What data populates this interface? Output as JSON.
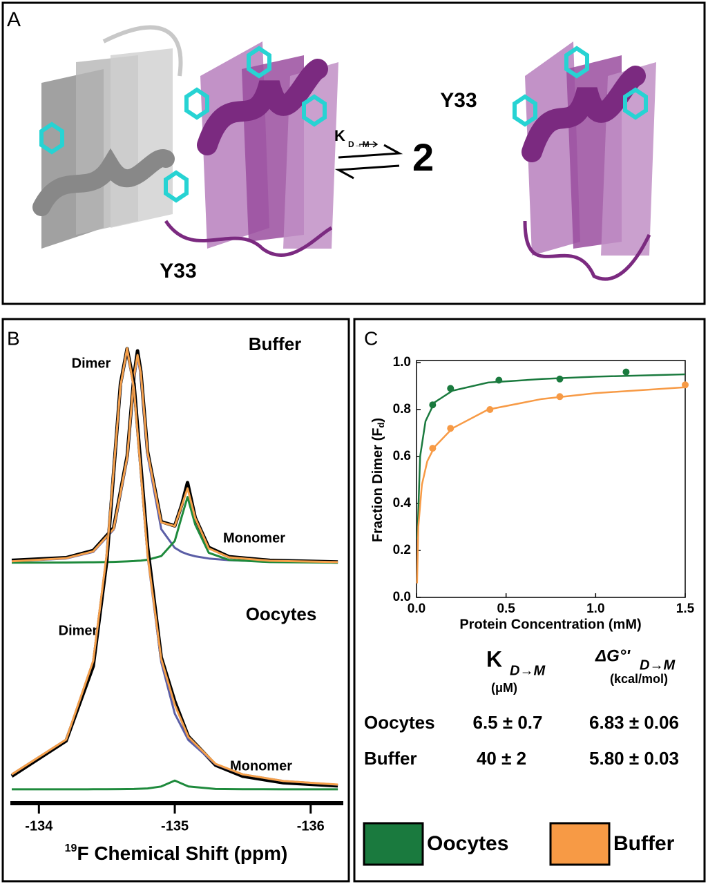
{
  "panel_a": {
    "label": "A",
    "annotations": [
      "Y33",
      "Y33"
    ],
    "k_symbol": "K",
    "k_sub": "D→M",
    "stoich": "2"
  },
  "chart_data": [
    {
      "type": "spectrum",
      "label": "B",
      "xlabel_sup": "19",
      "xlabel": "F Chemical Shift (ppm)",
      "xlim": [
        -133.79,
        -136.24
      ],
      "xticks": [
        -134,
        -135,
        -136
      ],
      "spectra": [
        {
          "title": "Buffer",
          "labels": [
            "Dimer",
            "Monomer"
          ],
          "x": [
            -133.8,
            -134.2,
            -134.4,
            -134.55,
            -134.65,
            -134.7,
            -134.726,
            -134.75,
            -134.8,
            -134.9,
            -135.0,
            -135.05,
            -135.094,
            -135.15,
            -135.25,
            -135.4,
            -135.7,
            -136.2
          ],
          "series": [
            {
              "color": "#000000",
              "values": [
                0.012,
                0.025,
                0.06,
                0.17,
                0.52,
                0.91,
                1.03,
                0.93,
                0.54,
                0.2,
                0.18,
                0.28,
                0.39,
                0.22,
                0.075,
                0.03,
                0.012,
                0.004
              ]
            },
            {
              "color": "#5b5ea6",
              "values": [
                0.0069,
                0.021,
                0.053,
                0.161,
                0.507,
                0.898,
                1.0,
                0.911,
                0.52,
                0.164,
                0.073,
                0.053,
                0.042,
                0.032,
                0.021,
                0.013,
                0.0062,
                0.0027
              ]
            },
            {
              "color": "#1e8a3c",
              "values": [
                0.0008,
                0.0017,
                0.0029,
                0.0046,
                0.0069,
                0.0087,
                0.01,
                0.011,
                0.015,
                0.033,
                0.106,
                0.222,
                0.32,
                0.186,
                0.049,
                0.014,
                0.0038,
                0.0011
              ]
            },
            {
              "color": "#f5a04a",
              "values": [
                0.0077,
                0.0227,
                0.0559,
                0.1656,
                0.5139,
                0.9067,
                1.01,
                0.922,
                0.535,
                0.197,
                0.179,
                0.275,
                0.362,
                0.218,
                0.07,
                0.027,
                0.01,
                0.0038
              ]
            }
          ]
        },
        {
          "title": "Oocytes",
          "labels": [
            "Dimer",
            "Monomer"
          ],
          "x": [
            -133.8,
            -134.2,
            -134.4,
            -134.5,
            -134.6,
            -134.649,
            -134.7,
            -134.8,
            -134.9,
            -135.0,
            -135.1,
            -135.3,
            -135.5,
            -135.8,
            -136.2
          ],
          "series": [
            {
              "color": "#000000",
              "values": [
                0.03,
                0.11,
                0.28,
                0.52,
                0.92,
                1.0,
                0.92,
                0.55,
                0.3,
                0.2,
                0.12,
                0.055,
                0.03,
                0.015,
                0.008
              ]
            },
            {
              "color": "#5b5ea6",
              "values": [
                0.034,
                0.113,
                0.292,
                0.536,
                0.914,
                1.0,
                0.907,
                0.529,
                0.289,
                0.172,
                0.112,
                0.057,
                0.034,
                0.019,
                0.0105
              ]
            },
            {
              "color": "#1e8a3c",
              "values": [
                0.0001,
                0.0002,
                0.0003,
                0.0004,
                0.0006,
                0.0008,
                0.001,
                0.0022,
                0.0066,
                0.02,
                0.0066,
                0.001,
                0.0004,
                0.0002,
                0.0001
              ]
            },
            {
              "color": "#f5a04a",
              "values": [
                0.034,
                0.113,
                0.292,
                0.536,
                0.915,
                1.001,
                0.908,
                0.531,
                0.296,
                0.192,
                0.119,
                0.058,
                0.034,
                0.019,
                0.011
              ]
            }
          ]
        }
      ]
    },
    {
      "type": "scatter",
      "label": "C",
      "xlabel": "Protein Concentration (mM)",
      "ylabel": "Fraction Dimer (F",
      "ylabel_sub": "d",
      "ylabel_end": ")",
      "xlim": [
        0,
        1.5
      ],
      "ylim": [
        0,
        1.0
      ],
      "xticks": [
        {
          "value": 0,
          "label": "0.0"
        },
        0.5,
        {
          "value": 1,
          "label": "1.0"
        },
        1.5
      ],
      "yticks": [
        {
          "value": 0,
          "label": "0.0"
        },
        0.2,
        0.4,
        0.6,
        0.8,
        {
          "value": 1,
          "label": "1.0"
        }
      ],
      "series": [
        {
          "name": "Oocytes",
          "color": "#1a7a3e",
          "x": [
            0.09,
            0.19,
            0.46,
            0.8,
            1.17
          ],
          "values": [
            0.82,
            0.89,
            0.925,
            0.93,
            0.96
          ],
          "fit_x": [
            0.005,
            0.02,
            0.05,
            0.1,
            0.2,
            0.4,
            0.7,
            1.0,
            1.5
          ],
          "fit_values": [
            0.25,
            0.6,
            0.75,
            0.83,
            0.88,
            0.915,
            0.93,
            0.94,
            0.95
          ]
        },
        {
          "name": "Buffer",
          "color": "#f79a45",
          "x": [
            0.09,
            0.19,
            0.41,
            0.8,
            1.5
          ],
          "values": [
            0.635,
            0.72,
            0.8,
            0.855,
            0.905
          ],
          "fit_x": [
            0.003,
            0.01,
            0.03,
            0.06,
            0.1,
            0.2,
            0.4,
            0.7,
            1.0,
            1.5
          ],
          "fit_values": [
            0.06,
            0.3,
            0.48,
            0.58,
            0.64,
            0.72,
            0.8,
            0.845,
            0.87,
            0.895
          ]
        }
      ]
    }
  ],
  "kd_table": {
    "headers": [
      {
        "text": "K",
        "sub": "D→M",
        "unit": "(μM)"
      },
      {
        "text": "ΔG°'",
        "sub": "D→M",
        "unit": "(kcal/mol)"
      }
    ],
    "rows": [
      [
        "Oocytes",
        "6.5 ± 0.7",
        "6.83 ± 0.06"
      ],
      [
        "Buffer",
        "40 ± 2",
        "5.80 ± 0.03"
      ]
    ]
  }
}
